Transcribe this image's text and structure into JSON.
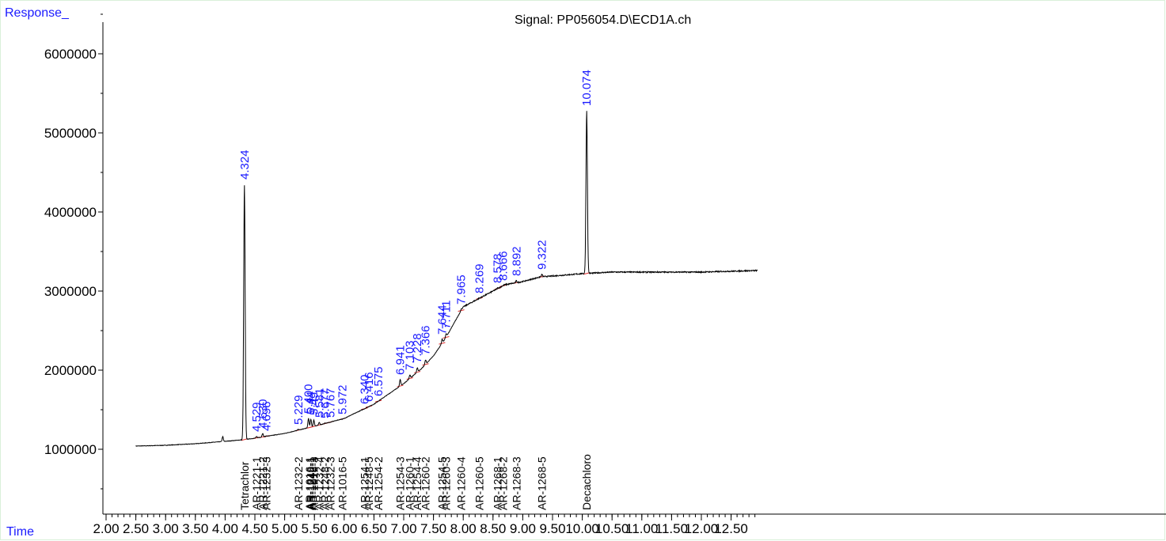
{
  "header": {
    "y_axis_label": "Response_",
    "x_axis_label": "Time",
    "signal": "Signal: PP056054.D\\ECD1A.ch"
  },
  "colors": {
    "trace": "#000000",
    "peak_label": "#1a1aff",
    "baseline_mark": "#e03030",
    "compound_label": "#000000",
    "axis_header": "#1a1aff"
  },
  "chart_data": {
    "type": "line",
    "title": "Signal: PP056054.D\\ECD1A.ch",
    "xlabel": "Time",
    "ylabel": "Response_",
    "xlim": [
      1.5,
      12.95
    ],
    "ylim": [
      0,
      6500000
    ],
    "x_ticks": [
      2.0,
      2.5,
      3.0,
      3.5,
      4.0,
      4.5,
      5.0,
      5.5,
      6.0,
      6.5,
      7.0,
      7.5,
      8.0,
      8.5,
      9.0,
      9.5,
      10.0,
      10.5,
      11.0,
      11.5,
      12.0,
      12.5
    ],
    "x_tick_labels": [
      "2.00",
      "2.50",
      "3.00",
      "3.50",
      "4.00",
      "4.50",
      "5.00",
      "5.50",
      "6.00",
      "6.50",
      "7.00",
      "7.50",
      "8.00",
      "8.50",
      "9.00",
      "9.50",
      "10.00",
      "10.50",
      "11.00",
      "11.50",
      "12.00",
      "12.50"
    ],
    "y_ticks": [
      1000000,
      2000000,
      3000000,
      4000000,
      5000000,
      6000000
    ],
    "y_tick_labels": [
      "1000000",
      "2000000",
      "3000000",
      "4000000",
      "5000000",
      "6000000"
    ],
    "baseline": [
      [
        2.5,
        1040000
      ],
      [
        3.0,
        1050000
      ],
      [
        3.5,
        1070000
      ],
      [
        4.0,
        1100000
      ],
      [
        4.3,
        1120000
      ],
      [
        4.5,
        1140000
      ],
      [
        5.0,
        1200000
      ],
      [
        5.5,
        1290000
      ],
      [
        6.0,
        1390000
      ],
      [
        6.5,
        1570000
      ],
      [
        7.0,
        1830000
      ],
      [
        7.3,
        2020000
      ],
      [
        7.5,
        2180000
      ],
      [
        7.7,
        2400000
      ],
      [
        7.85,
        2600000
      ],
      [
        8.0,
        2800000
      ],
      [
        8.2,
        2880000
      ],
      [
        8.5,
        3000000
      ],
      [
        8.7,
        3080000
      ],
      [
        9.0,
        3120000
      ],
      [
        9.3,
        3180000
      ],
      [
        9.5,
        3190000
      ],
      [
        10.0,
        3220000
      ],
      [
        10.5,
        3240000
      ],
      [
        11.0,
        3240000
      ],
      [
        12.0,
        3240000
      ],
      [
        12.95,
        3260000
      ]
    ],
    "peaks": [
      {
        "rt": 3.96,
        "height": 1160000,
        "label": ""
      },
      {
        "rt": 4.324,
        "height": 4350000,
        "label": "4.324"
      },
      {
        "rt": 4.529,
        "height": 1160000,
        "label": "4.529"
      },
      {
        "rt": 4.63,
        "height": 1200000,
        "label": "4.630"
      },
      {
        "rt": 4.696,
        "height": 1170000,
        "label": "4.696"
      },
      {
        "rt": 5.229,
        "height": 1250000,
        "label": "5.229"
      },
      {
        "rt": 5.33,
        "height": 1260000,
        "label": ""
      },
      {
        "rt": 5.4,
        "height": 1390000,
        "label": "5.400"
      },
      {
        "rt": 5.44,
        "height": 1380000,
        "label": "5.44"
      },
      {
        "rt": 5.49,
        "height": 1370000,
        "label": "5.49"
      },
      {
        "rt": 5.581,
        "height": 1340000,
        "label": "5.581"
      },
      {
        "rt": 5.677,
        "height": 1330000,
        "label": "5.677"
      },
      {
        "rt": 5.767,
        "height": 1340000,
        "label": "5.767"
      },
      {
        "rt": 5.972,
        "height": 1380000,
        "label": "5.972"
      },
      {
        "rt": 6.34,
        "height": 1510000,
        "label": "6.340"
      },
      {
        "rt": 6.416,
        "height": 1540000,
        "label": "6.416"
      },
      {
        "rt": 6.575,
        "height": 1610000,
        "label": "6.575"
      },
      {
        "rt": 6.941,
        "height": 1880000,
        "label": "6.941"
      },
      {
        "rt": 7.103,
        "height": 1940000,
        "label": "7.103"
      },
      {
        "rt": 7.228,
        "height": 2030000,
        "label": "7.228"
      },
      {
        "rt": 7.366,
        "height": 2130000,
        "label": "7.366"
      },
      {
        "rt": 7.644,
        "height": 2390000,
        "label": "7.644"
      },
      {
        "rt": 7.711,
        "height": 2460000,
        "label": "7.711"
      },
      {
        "rt": 7.965,
        "height": 2770000,
        "label": "7.965"
      },
      {
        "rt": 8.269,
        "height": 2910000,
        "label": "8.269"
      },
      {
        "rt": 8.578,
        "height": 3040000,
        "label": "8.578"
      },
      {
        "rt": 8.666,
        "height": 3070000,
        "label": "8.666"
      },
      {
        "rt": 8.892,
        "height": 3130000,
        "label": "8.892"
      },
      {
        "rt": 9.322,
        "height": 3210000,
        "label": "9.322"
      },
      {
        "rt": 10.074,
        "height": 5280000,
        "label": "10.074"
      }
    ],
    "compounds": [
      {
        "rt": 4.324,
        "name": "Tetrachlor"
      },
      {
        "rt": 4.529,
        "name": "AR-1221-1"
      },
      {
        "rt": 4.63,
        "name": "AR-1221-2"
      },
      {
        "rt": 4.696,
        "name": "AR-1232-3"
      },
      {
        "rt": 5.229,
        "name": "AR-1232-2"
      },
      {
        "rt": 5.42,
        "name": "AR-1016-1"
      },
      {
        "rt": 5.44,
        "name": "AR-1248-1"
      },
      {
        "rt": 5.46,
        "name": "AR-1242-1"
      },
      {
        "rt": 5.49,
        "name": "AR-1016-3"
      },
      {
        "rt": 5.581,
        "name": "AR-1232-4"
      },
      {
        "rt": 5.677,
        "name": "AR-1248-2"
      },
      {
        "rt": 5.767,
        "name": "AR-1232-3"
      },
      {
        "rt": 5.972,
        "name": "AR-1016-5"
      },
      {
        "rt": 6.34,
        "name": "AR-1254-1"
      },
      {
        "rt": 6.416,
        "name": "AR-1248-5"
      },
      {
        "rt": 6.575,
        "name": "AR-1254-2"
      },
      {
        "rt": 6.941,
        "name": "AR-1254-3"
      },
      {
        "rt": 7.103,
        "name": "AR-1260-1"
      },
      {
        "rt": 7.228,
        "name": "AR-1254-4"
      },
      {
        "rt": 7.366,
        "name": "AR-1260-2"
      },
      {
        "rt": 7.644,
        "name": "AR-1254-5"
      },
      {
        "rt": 7.711,
        "name": "AR-1260-3"
      },
      {
        "rt": 7.965,
        "name": "AR-1260-4"
      },
      {
        "rt": 8.269,
        "name": "AR-1260-5"
      },
      {
        "rt": 8.578,
        "name": "AR-1268-1"
      },
      {
        "rt": 8.666,
        "name": "AR-1268-2"
      },
      {
        "rt": 8.892,
        "name": "AR-1268-3"
      },
      {
        "rt": 9.322,
        "name": "AR-1268-5"
      },
      {
        "rt": 10.074,
        "name": "Decachloro"
      }
    ]
  }
}
